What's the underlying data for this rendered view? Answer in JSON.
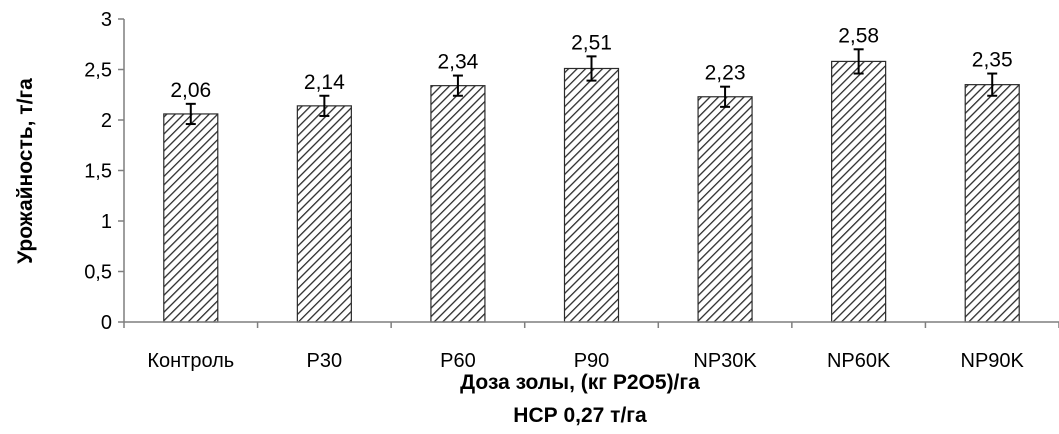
{
  "chart_data": {
    "type": "bar",
    "categories": [
      "Контроль",
      "P30",
      "P60",
      "P90",
      "NP30K",
      "NP60K",
      "NP90K"
    ],
    "values": [
      2.06,
      2.14,
      2.34,
      2.51,
      2.23,
      2.58,
      2.35
    ],
    "data_labels": [
      "2,06",
      "2,14",
      "2,34",
      "2,51",
      "2,23",
      "2,58",
      "2,35"
    ],
    "error": [
      0.1,
      0.1,
      0.1,
      0.12,
      0.1,
      0.12,
      0.11
    ],
    "ylim": [
      0,
      3
    ],
    "yticks": [
      0,
      0.5,
      1,
      1.5,
      2,
      2.5,
      3
    ],
    "ytick_labels": [
      "0",
      "0,5",
      "1",
      "1,5",
      "2",
      "2,5",
      "3"
    ],
    "ylabel": "Урожайность, т/га",
    "xlabel": "Доза золы, (кг P2O5)/га",
    "xlabel2": "НСР 0,27  т/га",
    "grid": false,
    "fill": "hatched",
    "colors": {
      "bar_line": "#2b2b2b",
      "axis": "#7f7f7f",
      "error": "#000000"
    }
  }
}
